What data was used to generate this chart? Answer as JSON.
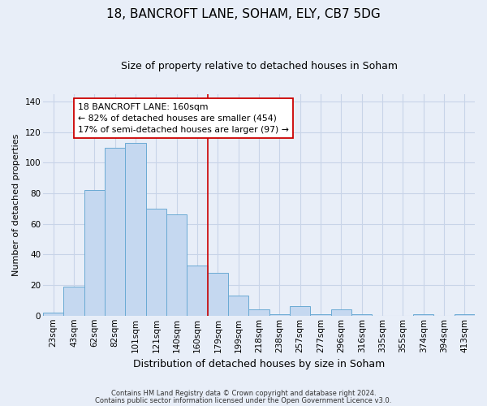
{
  "title": "18, BANCROFT LANE, SOHAM, ELY, CB7 5DG",
  "subtitle": "Size of property relative to detached houses in Soham",
  "xlabel": "Distribution of detached houses by size in Soham",
  "ylabel": "Number of detached properties",
  "bin_labels": [
    "23sqm",
    "43sqm",
    "62sqm",
    "82sqm",
    "101sqm",
    "121sqm",
    "140sqm",
    "160sqm",
    "179sqm",
    "199sqm",
    "218sqm",
    "238sqm",
    "257sqm",
    "277sqm",
    "296sqm",
    "316sqm",
    "335sqm",
    "355sqm",
    "374sqm",
    "394sqm",
    "413sqm"
  ],
  "bin_values": [
    2,
    19,
    82,
    110,
    113,
    70,
    66,
    33,
    28,
    13,
    4,
    1,
    6,
    1,
    4,
    1,
    0,
    0,
    1,
    0,
    1
  ],
  "bar_color": "#c5d8f0",
  "bar_edge_color": "#6aaad4",
  "vline_x": 7.5,
  "vline_color": "#cc0000",
  "annotation_text": "18 BANCROFT LANE: 160sqm\n← 82% of detached houses are smaller (454)\n17% of semi-detached houses are larger (97) →",
  "annotation_box_facecolor": "#ffffff",
  "annotation_box_edgecolor": "#cc0000",
  "ylim": [
    0,
    145
  ],
  "yticks": [
    0,
    20,
    40,
    60,
    80,
    100,
    120,
    140
  ],
  "grid_color": "#c8d4e8",
  "background_color": "#e8eef8",
  "footnote1": "Contains HM Land Registry data © Crown copyright and database right 2024.",
  "footnote2": "Contains public sector information licensed under the Open Government Licence v3.0.",
  "title_fontsize": 11,
  "subtitle_fontsize": 9,
  "ylabel_fontsize": 8,
  "xlabel_fontsize": 9,
  "tick_fontsize": 7.5,
  "footnote_fontsize": 6
}
